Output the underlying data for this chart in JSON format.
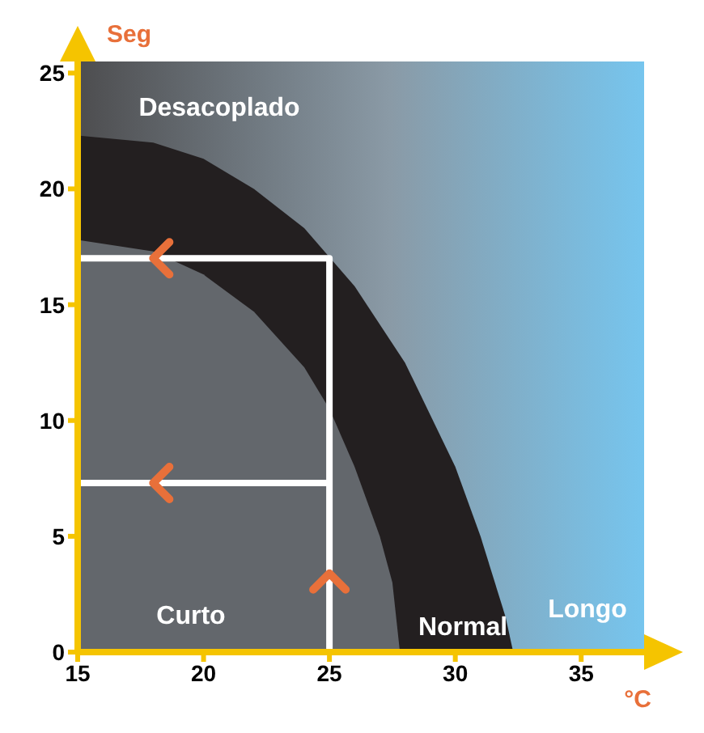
{
  "chart_data": {
    "type": "area",
    "xlabel": "°C",
    "ylabel": "Seg",
    "xlim": [
      15,
      37.5
    ],
    "ylim": [
      0,
      25.5
    ],
    "xticks": [
      15,
      20,
      25,
      30,
      35
    ],
    "yticks": [
      0,
      5,
      10,
      15,
      20,
      25
    ],
    "series": [
      {
        "color": "#231f20",
        "x": [
          15,
          18,
          20,
          22,
          24,
          26,
          28,
          30,
          31,
          32,
          32.3
        ],
        "values": [
          22.3,
          22,
          21.3,
          20,
          18.3,
          15.8,
          12.5,
          8,
          5,
          1.5,
          0
        ]
      },
      {
        "color": "#63676c",
        "x": [
          15,
          18,
          20,
          22,
          24,
          25,
          26,
          27,
          27.5,
          27.8
        ],
        "values": [
          17.8,
          17.3,
          16.3,
          14.7,
          12.3,
          10.5,
          8,
          5,
          3,
          0
        ]
      },
      {
        "type": "line",
        "color": "#ffffff",
        "x": [
          15,
          25,
          25
        ],
        "values": [
          17,
          17,
          0
        ]
      },
      {
        "type": "line",
        "color": "#ffffff",
        "x": [
          15,
          25
        ],
        "values": [
          7.3,
          7.3
        ]
      }
    ],
    "annotations": [
      "Desacoplado",
      "Curto",
      "Normal",
      "Longo"
    ]
  }
}
